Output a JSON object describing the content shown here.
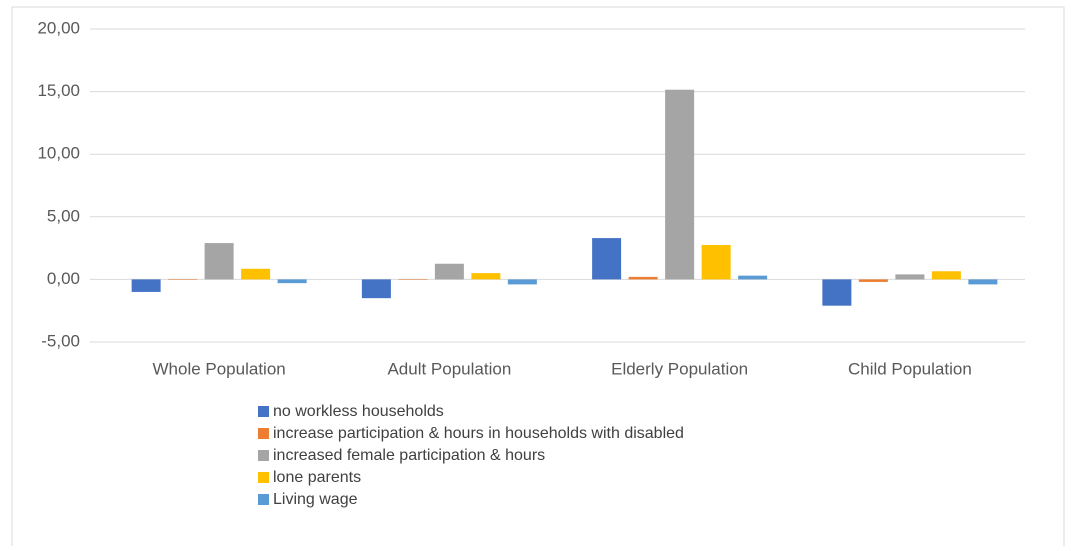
{
  "chart_data": {
    "type": "bar",
    "categories": [
      "Whole Population",
      "Adult Population",
      "Elderly Population",
      "Child Population"
    ],
    "series": [
      {
        "name": "no workless households",
        "color": "#4472c4",
        "values": [
          -1.0,
          -1.5,
          3.3,
          -2.1
        ]
      },
      {
        "name": "increase participation & hours in households with disabled",
        "color": "#ed7d31",
        "values": [
          0.0,
          0.0,
          0.2,
          -0.2
        ]
      },
      {
        "name": "increased female participation & hours",
        "color": "#a5a5a5",
        "values": [
          2.9,
          1.25,
          15.15,
          0.4
        ]
      },
      {
        "name": "lone parents",
        "color": "#ffc000",
        "values": [
          0.85,
          0.5,
          2.75,
          0.65
        ]
      },
      {
        "name": "Living wage",
        "color": "#5b9bd5",
        "values": [
          -0.3,
          -0.4,
          0.3,
          -0.4
        ]
      }
    ],
    "ylim": [
      -5,
      20
    ],
    "yticks": [
      {
        "value": -5,
        "label": "-5,00"
      },
      {
        "value": 0,
        "label": "0,00"
      },
      {
        "value": 5,
        "label": "5,00"
      },
      {
        "value": 10,
        "label": "10,00"
      },
      {
        "value": 15,
        "label": "15,00"
      },
      {
        "value": 20,
        "label": "20,00"
      }
    ],
    "grid": true
  }
}
